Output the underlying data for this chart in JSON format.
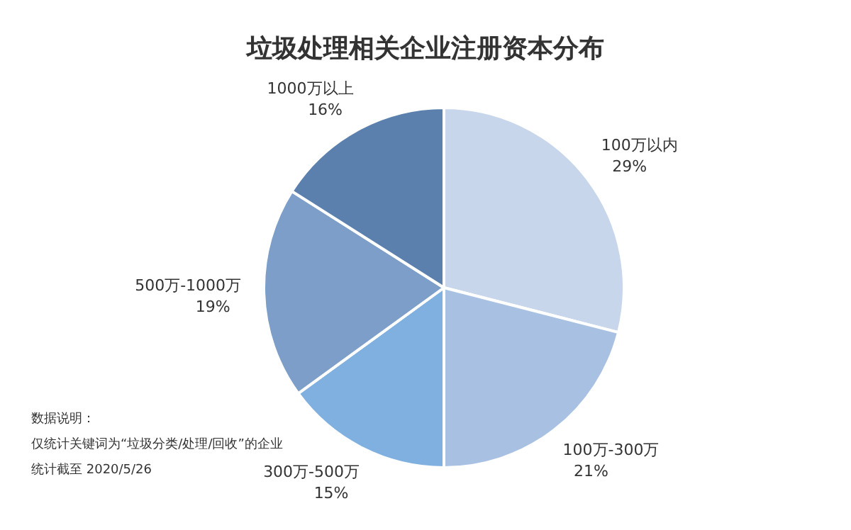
{
  "chart_data": {
    "type": "pie",
    "title": "垃圾处理相关企业注册资本分布",
    "categories": [
      "100万以内",
      "100万-300万",
      "300万-500万",
      "500万-1000万",
      "1000万以上"
    ],
    "values": [
      29,
      21,
      15,
      19,
      16
    ],
    "value_labels": [
      "29%",
      "21%",
      "15%",
      "19%",
      "16%"
    ],
    "colors": [
      "#c7d6eb",
      "#a8c1e2",
      "#80b0e0",
      "#7c9ec8",
      "#5b80ad"
    ],
    "annotations": [
      "数据说明：",
      "仅统计关键词为“垃圾分类/处理/回收”的企业",
      "统计截至 2020/5/26"
    ]
  }
}
